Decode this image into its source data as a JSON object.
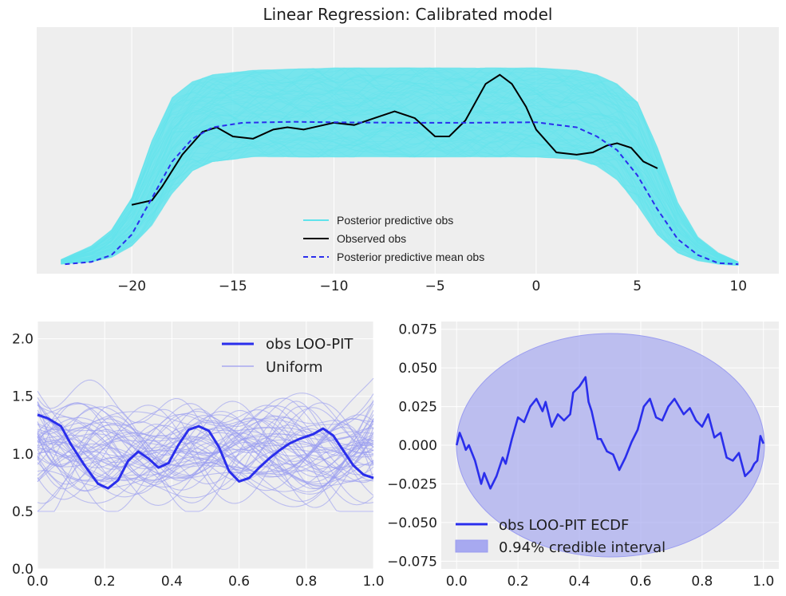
{
  "chart_data": [
    {
      "type": "line",
      "title": "Linear Regression: Calibrated model",
      "xlabel": "",
      "ylabel": "",
      "xlim": [
        -24.7,
        12.0
      ],
      "ylim": [
        0.0,
        1.0
      ],
      "xticks": [
        -20,
        -15,
        -10,
        -5,
        0,
        5,
        10
      ],
      "xtick_labels": [
        "−20",
        "−15",
        "−10",
        "−5",
        "0",
        "5",
        "10"
      ],
      "yticks_visible": false,
      "grid": true,
      "legend_position": "lower-center",
      "legend": [
        "Posterior predictive obs",
        "Observed obs",
        "Posterior predictive mean obs"
      ],
      "colors": {
        "posterior": "#60e3ec",
        "observed": "#000000",
        "mean": "#2a2eec"
      },
      "posterior_envelope": {
        "x": [
          -23.5,
          -22,
          -21,
          -20,
          -19,
          -18,
          -17,
          -16,
          -14,
          -10,
          -5,
          0,
          2,
          3,
          4,
          5,
          6,
          7,
          8,
          9,
          10
        ],
        "upper": [
          0.03,
          0.09,
          0.16,
          0.3,
          0.55,
          0.74,
          0.81,
          0.84,
          0.86,
          0.87,
          0.87,
          0.87,
          0.86,
          0.84,
          0.8,
          0.72,
          0.52,
          0.28,
          0.13,
          0.06,
          0.02
        ],
        "lower": [
          0.01,
          0.02,
          0.04,
          0.09,
          0.18,
          0.32,
          0.42,
          0.46,
          0.48,
          0.48,
          0.48,
          0.48,
          0.47,
          0.44,
          0.38,
          0.27,
          0.14,
          0.06,
          0.025,
          0.01,
          0.005
        ]
      },
      "series": [
        {
          "name": "Observed obs",
          "style": "solid",
          "x": [
            -20.0,
            -19.0,
            -18.5,
            -17.5,
            -16.5,
            -15.8,
            -15.0,
            -14.0,
            -13.0,
            -12.3,
            -11.5,
            -10.5,
            -10.0,
            -9.0,
            -8.0,
            -7.0,
            -6.0,
            -5.0,
            -4.3,
            -3.5,
            -2.5,
            -1.8,
            -1.2,
            -0.5,
            0.0,
            1.0,
            2.0,
            2.8,
            3.5,
            4.0,
            4.7,
            5.3,
            6.0
          ],
          "y": [
            0.27,
            0.29,
            0.35,
            0.49,
            0.59,
            0.61,
            0.57,
            0.56,
            0.6,
            0.61,
            0.6,
            0.62,
            0.63,
            0.62,
            0.65,
            0.68,
            0.65,
            0.57,
            0.57,
            0.64,
            0.8,
            0.84,
            0.8,
            0.7,
            0.6,
            0.5,
            0.49,
            0.5,
            0.53,
            0.54,
            0.52,
            0.46,
            0.43
          ]
        },
        {
          "name": "Posterior predictive mean obs",
          "style": "dashed",
          "x": [
            -23.3,
            -22.0,
            -21.0,
            -20.0,
            -19.0,
            -18.0,
            -17.0,
            -16.0,
            -14.5,
            -12.0,
            -9.0,
            -6.0,
            -3.0,
            0.0,
            2.0,
            3.0,
            4.0,
            5.0,
            6.0,
            7.0,
            8.0,
            9.0,
            10.0
          ],
          "y": [
            0.01,
            0.02,
            0.05,
            0.14,
            0.3,
            0.46,
            0.56,
            0.61,
            0.63,
            0.634,
            0.631,
            0.63,
            0.63,
            0.632,
            0.61,
            0.57,
            0.51,
            0.4,
            0.25,
            0.12,
            0.05,
            0.015,
            0.01
          ]
        }
      ]
    },
    {
      "type": "line",
      "title": "",
      "xlabel": "",
      "ylabel": "",
      "xlim": [
        0.0,
        1.0
      ],
      "ylim": [
        0.0,
        2.15
      ],
      "xticks": [
        0.0,
        0.2,
        0.4,
        0.6,
        0.8,
        1.0
      ],
      "xtick_labels": [
        "0.0",
        "0.2",
        "0.4",
        "0.6",
        "0.8",
        "1.0"
      ],
      "yticks": [
        0.0,
        0.5,
        1.0,
        1.5,
        2.0
      ],
      "ytick_labels": [
        "0.0",
        "0.5",
        "1.0",
        "1.5",
        "2.0"
      ],
      "grid": true,
      "legend_position": "top-right",
      "legend": [
        "obs LOO-PIT",
        "Uniform"
      ],
      "colors": {
        "obs": "#2a2eec",
        "uniform": "#9a9cf0"
      },
      "uniform_band": {
        "lower": 0.5,
        "upper": 2.05
      },
      "series": [
        {
          "name": "obs LOO-PIT",
          "x": [
            0.0,
            0.03,
            0.07,
            0.1,
            0.14,
            0.18,
            0.21,
            0.24,
            0.27,
            0.3,
            0.33,
            0.36,
            0.39,
            0.42,
            0.45,
            0.48,
            0.51,
            0.54,
            0.57,
            0.6,
            0.63,
            0.66,
            0.69,
            0.72,
            0.75,
            0.78,
            0.82,
            0.85,
            0.88,
            0.91,
            0.94,
            0.97,
            1.0
          ],
          "y": [
            1.34,
            1.31,
            1.24,
            1.08,
            0.9,
            0.74,
            0.7,
            0.77,
            0.94,
            1.02,
            0.96,
            0.88,
            0.92,
            1.08,
            1.21,
            1.24,
            1.2,
            1.06,
            0.85,
            0.76,
            0.79,
            0.88,
            0.96,
            1.03,
            1.09,
            1.13,
            1.17,
            1.22,
            1.16,
            1.03,
            0.9,
            0.82,
            0.79
          ]
        }
      ]
    },
    {
      "type": "line",
      "title": "",
      "xlabel": "",
      "ylabel": "",
      "xlim": [
        -0.05,
        1.05
      ],
      "ylim": [
        -0.08,
        0.08
      ],
      "xticks": [
        0.0,
        0.2,
        0.4,
        0.6,
        0.8,
        1.0
      ],
      "xtick_labels": [
        "0.0",
        "0.2",
        "0.4",
        "0.6",
        "0.8",
        "1.0"
      ],
      "yticks": [
        -0.075,
        -0.05,
        -0.025,
        0.0,
        0.025,
        0.05,
        0.075
      ],
      "ytick_labels": [
        "−0.075",
        "−0.050",
        "−0.025",
        "0.000",
        "0.025",
        "0.050",
        "0.075"
      ],
      "grid": true,
      "legend_position": "lower-left",
      "legend": [
        "obs LOO-PIT ECDF",
        "0.94% credible interval"
      ],
      "colors": {
        "ecdf": "#2a2eec",
        "interval": "#a7a9f0"
      },
      "series": [
        {
          "name": "obs LOO-PIT ECDF",
          "x": [
            0.0,
            0.01,
            0.02,
            0.03,
            0.04,
            0.06,
            0.08,
            0.09,
            0.11,
            0.13,
            0.15,
            0.16,
            0.18,
            0.2,
            0.22,
            0.24,
            0.26,
            0.28,
            0.29,
            0.31,
            0.33,
            0.35,
            0.37,
            0.38,
            0.4,
            0.42,
            0.43,
            0.44,
            0.46,
            0.47,
            0.49,
            0.51,
            0.53,
            0.55,
            0.57,
            0.59,
            0.61,
            0.63,
            0.65,
            0.67,
            0.69,
            0.71,
            0.74,
            0.76,
            0.78,
            0.8,
            0.82,
            0.84,
            0.86,
            0.88,
            0.9,
            0.92,
            0.94,
            0.96,
            0.97,
            0.98,
            0.99,
            1.0
          ],
          "y": [
            0.0,
            0.008,
            0.003,
            -0.003,
            0.0,
            -0.01,
            -0.025,
            -0.018,
            -0.028,
            -0.02,
            -0.008,
            -0.012,
            0.004,
            0.018,
            0.015,
            0.025,
            0.03,
            0.022,
            0.028,
            0.012,
            0.02,
            0.016,
            0.02,
            0.034,
            0.038,
            0.044,
            0.028,
            0.022,
            0.004,
            0.004,
            -0.004,
            -0.006,
            -0.016,
            -0.008,
            0.002,
            0.01,
            0.025,
            0.03,
            0.018,
            0.016,
            0.025,
            0.03,
            0.02,
            0.024,
            0.016,
            0.012,
            0.02,
            0.005,
            0.008,
            -0.008,
            -0.01,
            -0.005,
            -0.02,
            -0.016,
            -0.012,
            -0.01,
            0.006,
            0.001
          ]
        }
      ]
    }
  ]
}
